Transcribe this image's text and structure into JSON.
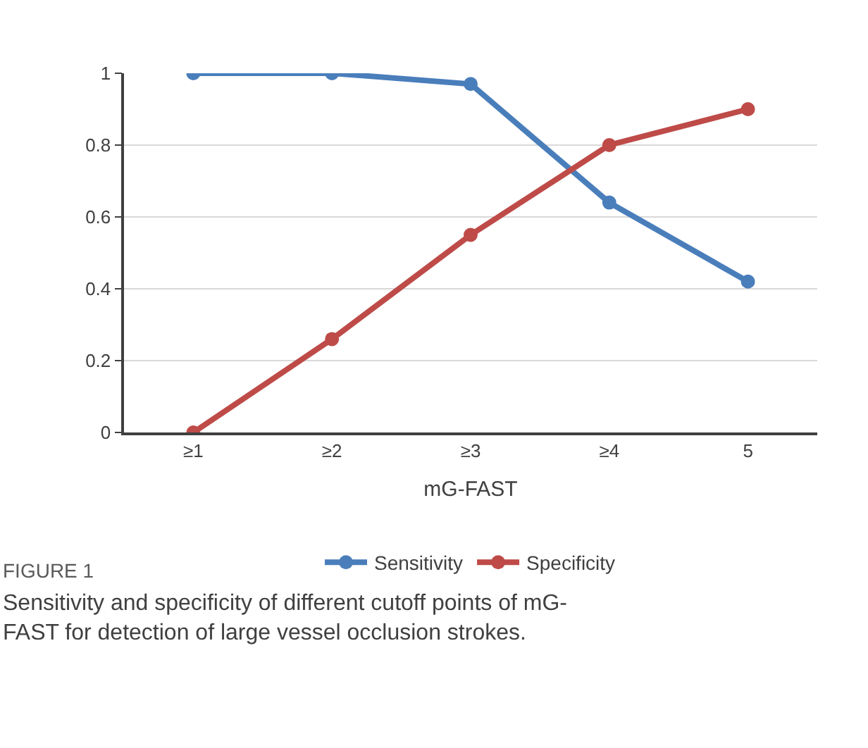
{
  "chart_data": {
    "type": "line",
    "xlabel": "mG-FAST",
    "categories": [
      "≥1",
      "≥2",
      "≥3",
      "≥4",
      "5"
    ],
    "series": [
      {
        "name": "Sensitivity",
        "color": "#4a7ebb",
        "values": [
          1,
          1,
          0.97,
          0.64,
          0.42
        ]
      },
      {
        "name": "Specificity",
        "color": "#be4b48",
        "values": [
          0,
          0.26,
          0.55,
          0.8,
          0.9
        ]
      }
    ],
    "ylim": [
      0,
      1
    ],
    "yticks": [
      0,
      {
        "value": 0.2,
        "label": "0.2"
      },
      {
        "value": 0.4,
        "label": "0.4"
      },
      {
        "value": 0.6,
        "label": "0.6"
      },
      {
        "value": 0.8,
        "label": "0.8"
      },
      1
    ],
    "grid": "y",
    "legend": "bottom",
    "marker": "circle",
    "line_style": "solid",
    "annotations": [
      "FIGURE 1",
      "Sensitivity and specificity of different cutoff points of mG-FAST for detection of large vessel occlusion strokes."
    ]
  }
}
